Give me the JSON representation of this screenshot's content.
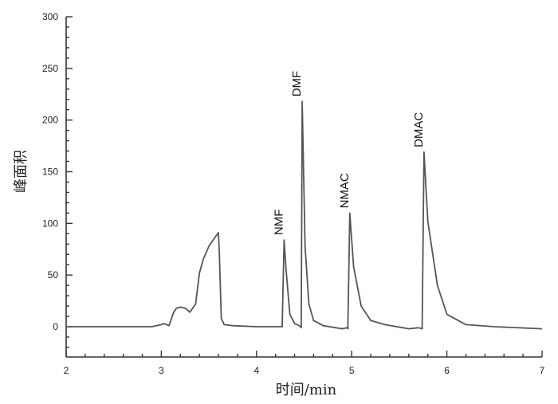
{
  "chart_data": {
    "type": "line",
    "title": "",
    "xlabel": "时间/min",
    "ylabel": "峰面积",
    "xlim": [
      2,
      7
    ],
    "ylim": [
      -30,
      300
    ],
    "x_ticks": [
      2,
      3,
      4,
      5,
      6,
      7
    ],
    "y_ticks": [
      0,
      50,
      100,
      150,
      200,
      250,
      300
    ],
    "grid": false,
    "legend": "none",
    "line_color": "#555555",
    "series": [
      {
        "x": [
          2.0,
          2.9,
          3.0,
          3.03,
          3.08,
          3.13,
          3.16,
          3.2,
          3.25,
          3.3,
          3.36,
          3.4,
          3.44,
          3.5,
          3.56,
          3.6,
          3.61,
          3.63,
          3.66,
          3.75,
          4.0,
          4.2,
          4.27,
          4.27,
          4.29,
          4.31,
          4.35,
          4.4,
          4.45,
          4.47,
          4.47,
          4.48,
          4.51,
          4.55,
          4.6,
          4.7,
          4.9,
          4.95,
          4.96,
          4.96,
          4.98,
          5.02,
          5.1,
          5.2,
          5.35,
          5.6,
          5.7,
          5.74,
          5.74,
          5.76,
          5.8,
          5.9,
          6.0,
          6.2,
          6.5,
          7.0
        ],
        "y": [
          0,
          0,
          2,
          3,
          1,
          14,
          18,
          19,
          18,
          14,
          22,
          52,
          65,
          78,
          86,
          91,
          70,
          8,
          2,
          1,
          0,
          0,
          0,
          0,
          84,
          56,
          12,
          3,
          1,
          -1,
          0,
          218,
          78,
          22,
          6,
          1,
          -2,
          -1,
          -2,
          0,
          110,
          58,
          20,
          6,
          2,
          -2,
          -1,
          -2,
          0,
          169,
          102,
          40,
          12,
          2,
          0,
          -2
        ]
      }
    ],
    "annotations": [
      {
        "text": "NMF",
        "x": 4.29,
        "y": 84
      },
      {
        "text": "DMF",
        "x": 4.48,
        "y": 218
      },
      {
        "text": "NMAC",
        "x": 4.98,
        "y": 110
      },
      {
        "text": "DMAC",
        "x": 5.76,
        "y": 169
      }
    ]
  }
}
